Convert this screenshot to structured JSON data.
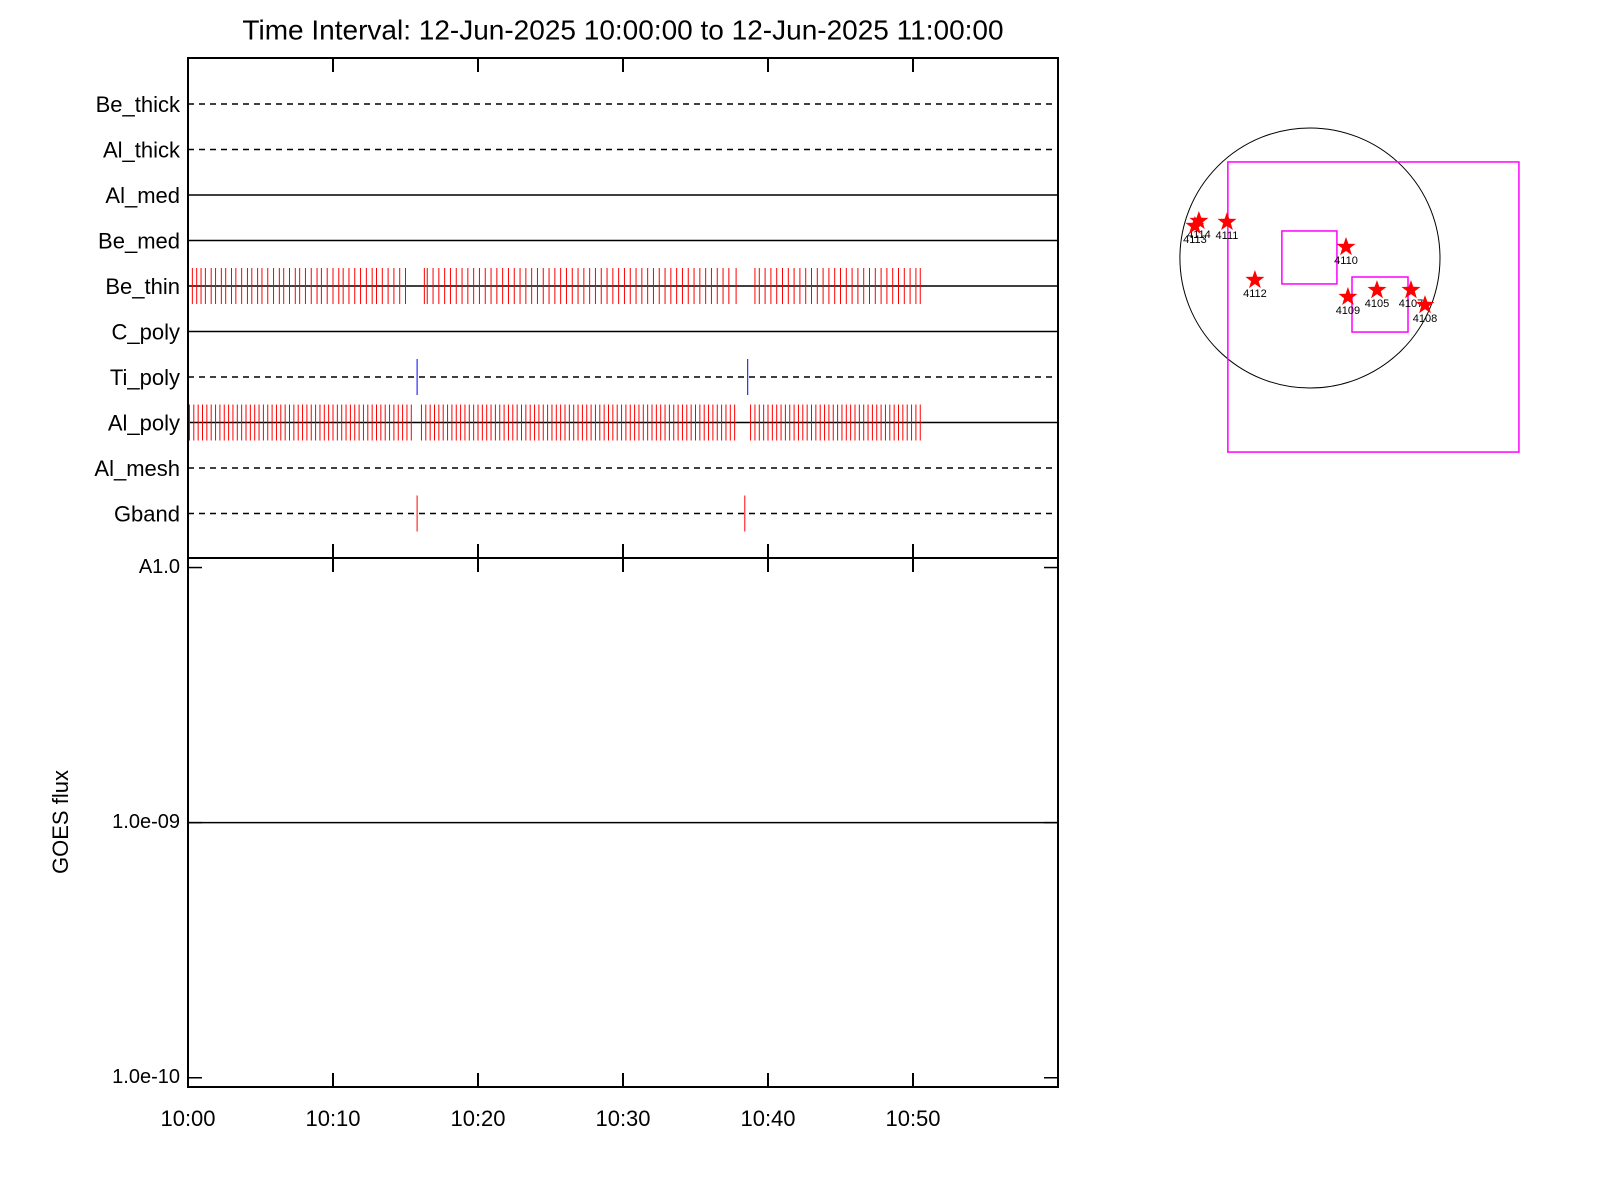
{
  "chart_data": [
    {
      "type": "timeline",
      "title": "Time Interval: 12-Jun-2025 10:00:00 to 12-Jun-2025 11:00:00",
      "xlim": [
        0,
        60
      ],
      "categories": [
        "Be_thick",
        "Al_thick",
        "Al_med",
        "Be_med",
        "Be_thin",
        "C_poly",
        "Ti_poly",
        "Al_poly",
        "Al_mesh",
        "Gband"
      ],
      "line_styles": [
        "dashed",
        "dashed",
        "solid",
        "solid",
        "solid",
        "solid",
        "dashed",
        "solid",
        "dashed",
        "dashed"
      ],
      "events": [
        {
          "color": "#ff0000",
          "times": []
        },
        {
          "color": "#ff0000",
          "times": []
        },
        {
          "color": "#ff0000",
          "times": []
        },
        {
          "color": "#ff0000",
          "times": []
        },
        {
          "color": "#ff0000",
          "times": [
            0.3,
            0.6,
            0.9,
            1.2,
            1.6,
            1.9,
            2.3,
            2.6,
            3.0,
            3.3,
            3.7,
            4.1,
            4.4,
            4.8,
            5.1,
            5.5,
            5.9,
            6.3,
            6.6,
            7.0,
            7.4,
            7.7,
            8.1,
            8.5,
            8.9,
            9.2,
            9.6,
            10.0,
            10.4,
            10.7,
            11.1,
            11.5,
            11.9,
            12.3,
            12.7,
            13.0,
            13.4,
            13.8,
            14.2,
            14.6,
            15.0,
            16.3,
            16.5,
            16.9,
            17.3,
            17.7,
            18.1,
            18.5,
            18.9,
            19.3,
            19.7,
            20.1,
            20.5,
            20.9,
            21.3,
            21.7,
            22.1,
            22.5,
            22.9,
            23.3,
            23.7,
            24.1,
            24.5,
            24.9,
            25.3,
            25.7,
            26.1,
            26.5,
            26.9,
            27.3,
            27.7,
            28.1,
            28.5,
            28.9,
            29.3,
            29.7,
            30.1,
            30.5,
            30.9,
            31.3,
            31.7,
            32.1,
            32.5,
            32.9,
            33.3,
            33.7,
            34.1,
            34.5,
            34.9,
            35.3,
            35.7,
            36.1,
            36.5,
            36.9,
            37.3,
            37.8,
            39.1,
            39.4,
            39.8,
            40.2,
            40.6,
            41.0,
            41.4,
            41.8,
            42.2,
            42.6,
            43.0,
            43.4,
            43.8,
            44.2,
            44.6,
            45.0,
            45.4,
            45.8,
            46.2,
            46.6,
            47.0,
            47.4,
            47.8,
            48.2,
            48.6,
            49.0,
            49.4,
            49.8,
            50.2,
            50.5
          ]
        },
        {
          "color": "#ff0000",
          "times": []
        },
        {
          "color": "#0000ff",
          "times": [
            15.8,
            38.6
          ]
        },
        {
          "color": "#ff0000",
          "times": [
            0.1,
            0.4,
            0.7,
            1.0,
            1.3,
            1.6,
            1.9,
            2.2,
            2.5,
            2.8,
            3.1,
            3.4,
            3.7,
            4.0,
            4.3,
            4.6,
            4.9,
            5.2,
            5.5,
            5.8,
            6.1,
            6.4,
            6.7,
            7.0,
            7.3,
            7.6,
            7.9,
            8.2,
            8.5,
            8.8,
            9.1,
            9.4,
            9.7,
            10.0,
            10.3,
            10.6,
            10.9,
            11.2,
            11.5,
            11.8,
            12.1,
            12.4,
            12.7,
            13.0,
            13.3,
            13.6,
            13.9,
            14.2,
            14.5,
            14.8,
            15.1,
            15.4,
            16.1,
            16.4,
            16.7,
            17.0,
            17.3,
            17.6,
            17.9,
            18.2,
            18.5,
            18.8,
            19.1,
            19.4,
            19.7,
            20.0,
            20.3,
            20.6,
            20.9,
            21.2,
            21.5,
            21.8,
            22.1,
            22.4,
            22.7,
            23.0,
            23.3,
            23.6,
            23.9,
            24.2,
            24.5,
            24.8,
            25.1,
            25.4,
            25.7,
            26.0,
            26.3,
            26.6,
            26.9,
            27.2,
            27.5,
            27.8,
            28.1,
            28.4,
            28.7,
            29.0,
            29.3,
            29.6,
            29.9,
            30.2,
            30.5,
            30.8,
            31.1,
            31.4,
            31.7,
            32.0,
            32.3,
            32.6,
            32.9,
            33.2,
            33.5,
            33.8,
            34.1,
            34.4,
            34.7,
            35.0,
            35.3,
            35.6,
            35.9,
            36.2,
            36.5,
            36.8,
            37.1,
            37.4,
            37.7,
            38.8,
            39.1,
            39.4,
            39.7,
            40.0,
            40.3,
            40.6,
            40.9,
            41.2,
            41.5,
            41.8,
            42.1,
            42.4,
            42.7,
            43.0,
            43.3,
            43.6,
            43.9,
            44.2,
            44.5,
            44.8,
            45.1,
            45.4,
            45.7,
            46.0,
            46.3,
            46.6,
            46.9,
            47.2,
            47.5,
            47.8,
            48.1,
            48.4,
            48.7,
            49.0,
            49.3,
            49.6,
            49.9,
            50.2,
            50.5
          ]
        },
        {
          "color": "#ff0000",
          "times": []
        },
        {
          "color": "#ff0000",
          "times": [
            15.8,
            38.4
          ]
        }
      ]
    },
    {
      "type": "line",
      "ylabel": "GOES flux",
      "ylog": true,
      "xlim": [
        0,
        60
      ],
      "xticks": [
        {
          "value": 0,
          "label": "10:00"
        },
        {
          "value": 10,
          "label": "10:10"
        },
        {
          "value": 20,
          "label": "10:20"
        },
        {
          "value": 30,
          "label": "10:30"
        },
        {
          "value": 40,
          "label": "10:40"
        },
        {
          "value": 50,
          "label": "10:50"
        }
      ],
      "ylim": [
        9.2e-11,
        1.09e-08
      ],
      "yticks": [
        {
          "value": 1e-08,
          "label": "A1.0"
        },
        {
          "value": 1e-09,
          "label": "1.0e-09"
        },
        {
          "value": 1e-10,
          "label": "1.0e-10"
        }
      ],
      "x": [
        0,
        60
      ],
      "series": [
        {
          "color": "#000000",
          "values": [
            1e-09,
            1e-09
          ]
        }
      ]
    },
    {
      "type": "map",
      "xlim": [
        -1017,
        1599
      ],
      "ylim": [
        -1468,
        1003
      ],
      "disk_radius": 945,
      "box_color": "#ff00ff",
      "star_color": "#ff0000",
      "boxes": [
        {
          "xc": 461,
          "yc": -356,
          "w": 2115,
          "h": 2108
        },
        {
          "xc": -4,
          "yc": 4,
          "w": 400,
          "h": 385
        },
        {
          "xc": 509,
          "yc": -338,
          "w": 407,
          "h": 400
        }
      ],
      "points": [
        {
          "label": "4114",
          "x": -807,
          "y": 269
        },
        {
          "label": "4113",
          "x": -836,
          "y": 233
        },
        {
          "label": "4111",
          "x": -603,
          "y": 262
        },
        {
          "label": "4110",
          "x": 262,
          "y": 80
        },
        {
          "label": "4112",
          "x": -400,
          "y": -160
        },
        {
          "label": "4109",
          "x": 276,
          "y": -283
        },
        {
          "label": "4105",
          "x": 487,
          "y": -233
        },
        {
          "label": "4107",
          "x": 734,
          "y": -233
        },
        {
          "label": "4108",
          "x": 836,
          "y": -342
        }
      ]
    }
  ]
}
